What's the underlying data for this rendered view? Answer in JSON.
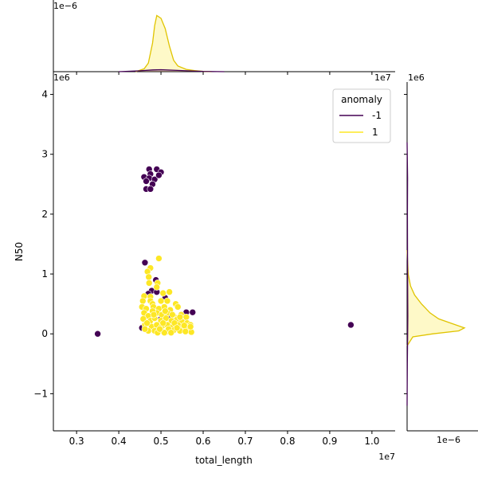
{
  "chart_data": {
    "type": "scatter",
    "xlabel": "total_length",
    "ylabel": "N50",
    "x_scale_label": "1e7",
    "y_scale_label": "1e6",
    "xlim": [
      0.245,
      1.055
    ],
    "ylim": [
      -1.62,
      4.38
    ],
    "x_ticks": [
      "0.3",
      "0.4",
      "0.5",
      "0.6",
      "0.7",
      "0.8",
      "0.9",
      "1.0"
    ],
    "x_tick_values": [
      0.3,
      0.4,
      0.5,
      0.6,
      0.7,
      0.8,
      0.9,
      1.0
    ],
    "y_ticks": [
      "−1",
      "0",
      "1",
      "2",
      "3",
      "4"
    ],
    "y_tick_values": [
      -1,
      0,
      1,
      2,
      3,
      4
    ],
    "legend": {
      "title": "anomaly",
      "placement": "top-right",
      "entries": [
        {
          "label": "-1",
          "color": "#440154"
        },
        {
          "label": "1",
          "color": "#fde725"
        }
      ]
    },
    "series": [
      {
        "name": "-1",
        "color": "#440154",
        "points": [
          [
            0.35,
            0.0
          ],
          [
            0.95,
            0.15
          ],
          [
            0.575,
            0.36
          ],
          [
            0.56,
            0.36
          ],
          [
            0.57,
            0.05
          ],
          [
            0.462,
            1.19
          ],
          [
            0.488,
            0.9
          ],
          [
            0.478,
            0.72
          ],
          [
            0.49,
            0.7
          ],
          [
            0.47,
            0.67
          ],
          [
            0.455,
            0.1
          ],
          [
            0.556,
            0.2
          ],
          [
            0.472,
            2.75
          ],
          [
            0.49,
            2.75
          ],
          [
            0.475,
            2.67
          ],
          [
            0.5,
            2.7
          ],
          [
            0.46,
            2.62
          ],
          [
            0.472,
            2.6
          ],
          [
            0.485,
            2.58
          ],
          [
            0.495,
            2.65
          ],
          [
            0.465,
            2.55
          ],
          [
            0.48,
            2.5
          ],
          [
            0.465,
            2.42
          ],
          [
            0.475,
            2.42
          ],
          [
            0.52,
            0.3
          ],
          [
            0.5,
            0.25
          ],
          [
            0.54,
            0.45
          ],
          [
            0.51,
            0.6
          ]
        ]
      },
      {
        "name": "1",
        "color": "#fde725",
        "points": [
          [
            0.495,
            1.26
          ],
          [
            0.475,
            1.1
          ],
          [
            0.468,
            1.04
          ],
          [
            0.471,
            0.95
          ],
          [
            0.472,
            0.85
          ],
          [
            0.492,
            0.85
          ],
          [
            0.49,
            0.78
          ],
          [
            0.475,
            0.62
          ],
          [
            0.46,
            0.63
          ],
          [
            0.505,
            0.68
          ],
          [
            0.52,
            0.7
          ],
          [
            0.457,
            0.55
          ],
          [
            0.475,
            0.55
          ],
          [
            0.48,
            0.5
          ],
          [
            0.5,
            0.55
          ],
          [
            0.515,
            0.55
          ],
          [
            0.535,
            0.5
          ],
          [
            0.455,
            0.45
          ],
          [
            0.465,
            0.42
          ],
          [
            0.482,
            0.45
          ],
          [
            0.495,
            0.42
          ],
          [
            0.508,
            0.45
          ],
          [
            0.522,
            0.4
          ],
          [
            0.54,
            0.45
          ],
          [
            0.46,
            0.35
          ],
          [
            0.47,
            0.3
          ],
          [
            0.49,
            0.35
          ],
          [
            0.502,
            0.32
          ],
          [
            0.515,
            0.35
          ],
          [
            0.53,
            0.3
          ],
          [
            0.548,
            0.32
          ],
          [
            0.56,
            0.28
          ],
          [
            0.458,
            0.25
          ],
          [
            0.475,
            0.22
          ],
          [
            0.485,
            0.26
          ],
          [
            0.5,
            0.22
          ],
          [
            0.512,
            0.26
          ],
          [
            0.525,
            0.22
          ],
          [
            0.538,
            0.24
          ],
          [
            0.55,
            0.2
          ],
          [
            0.562,
            0.18
          ],
          [
            0.57,
            0.15
          ],
          [
            0.462,
            0.15
          ],
          [
            0.478,
            0.12
          ],
          [
            0.49,
            0.15
          ],
          [
            0.502,
            0.12
          ],
          [
            0.515,
            0.15
          ],
          [
            0.528,
            0.12
          ],
          [
            0.54,
            0.15
          ],
          [
            0.552,
            0.1
          ],
          [
            0.565,
            0.08
          ],
          [
            0.47,
            0.05
          ],
          [
            0.485,
            0.05
          ],
          [
            0.5,
            0.06
          ],
          [
            0.515,
            0.04
          ],
          [
            0.53,
            0.06
          ],
          [
            0.545,
            0.05
          ],
          [
            0.558,
            0.04
          ],
          [
            0.572,
            0.03
          ],
          [
            0.48,
            0.38
          ],
          [
            0.505,
            0.18
          ],
          [
            0.518,
            0.08
          ],
          [
            0.532,
            0.18
          ],
          [
            0.545,
            0.28
          ],
          [
            0.492,
            0.02
          ],
          [
            0.508,
            0.02
          ],
          [
            0.524,
            0.02
          ],
          [
            0.467,
            0.18
          ],
          [
            0.483,
            0.32
          ],
          [
            0.51,
            0.38
          ],
          [
            0.527,
            0.32
          ],
          [
            0.538,
            0.1
          ],
          [
            0.555,
            0.14
          ],
          [
            0.57,
            0.12
          ],
          [
            0.462,
            0.08
          ],
          [
            0.497,
            0.08
          ]
        ]
      }
    ],
    "marginal_x": {
      "scale_label": "1e−6",
      "series": [
        {
          "name": "1",
          "x": [
            0.44,
            0.46,
            0.47,
            0.48,
            0.485,
            0.49,
            0.5,
            0.51,
            0.52,
            0.53,
            0.54,
            0.56,
            0.58,
            0.6,
            0.62
          ],
          "density": [
            0.0,
            0.05,
            0.15,
            0.5,
            0.8,
            0.98,
            0.93,
            0.75,
            0.45,
            0.2,
            0.1,
            0.04,
            0.02,
            0.005,
            0.0
          ]
        },
        {
          "name": "-1",
          "x": [
            0.4,
            0.45,
            0.48,
            0.5,
            0.55,
            0.6,
            0.65
          ],
          "density": [
            0.0,
            0.015,
            0.03,
            0.035,
            0.02,
            0.006,
            0.0
          ]
        }
      ]
    },
    "marginal_y": {
      "scale_label": "1e−6",
      "series": [
        {
          "name": "1",
          "y": [
            -0.2,
            -0.05,
            0.0,
            0.05,
            0.1,
            0.15,
            0.25,
            0.35,
            0.5,
            0.65,
            0.8,
            1.0,
            1.4
          ],
          "density": [
            0.0,
            0.1,
            0.45,
            0.9,
            1.0,
            0.85,
            0.55,
            0.4,
            0.25,
            0.13,
            0.06,
            0.02,
            0.0
          ]
        },
        {
          "name": "-1",
          "y": [
            -1.2,
            -0.5,
            0.0,
            0.3,
            1.0,
            2.0,
            2.6,
            3.2
          ],
          "density": [
            0.0,
            0.004,
            0.01,
            0.012,
            0.008,
            0.006,
            0.008,
            0.0
          ]
        }
      ]
    }
  }
}
